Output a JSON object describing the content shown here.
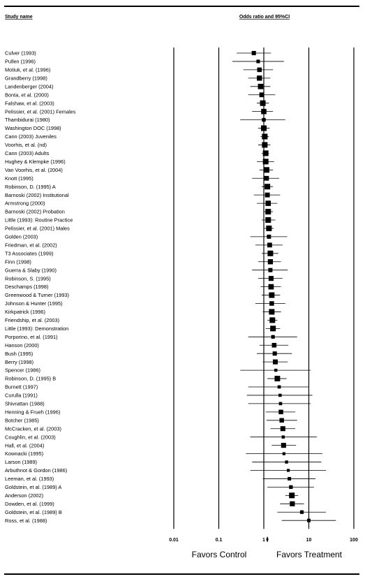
{
  "chart_data": {
    "type": "forest",
    "headers": {
      "left": "Study name",
      "right": "Odds ratio and 95%CI"
    },
    "x_scale": "log",
    "xlim": [
      0.01,
      100
    ],
    "x_ticks": [
      {
        "value": 0.01,
        "label": "0.01"
      },
      {
        "value": 0.1,
        "label": "0.1"
      },
      {
        "value": 1,
        "label": "1"
      },
      {
        "value": 10,
        "label": "10"
      },
      {
        "value": 100,
        "label": "100"
      }
    ],
    "favors_left": "Favors Control",
    "favors_right": "Favors Treatment",
    "summary": {
      "or": 1.2,
      "lo": 1.13,
      "hi": 1.27
    },
    "studies": [
      {
        "name": "Culver (1993)",
        "or": 0.6,
        "lo": 0.25,
        "hi": 1.45
      },
      {
        "name": "Pullen (1996)",
        "or": 0.75,
        "lo": 0.2,
        "hi": 2.8
      },
      {
        "name": "Motiuk, et al. (1996)",
        "or": 0.8,
        "lo": 0.35,
        "hi": 1.6
      },
      {
        "name": "Grandberry (1998)",
        "or": 0.8,
        "lo": 0.45,
        "hi": 1.4
      },
      {
        "name": "Landenberger (2004)",
        "or": 0.85,
        "lo": 0.5,
        "hi": 1.4
      },
      {
        "name": "Bonta, et al. (2000)",
        "or": 0.9,
        "lo": 0.45,
        "hi": 1.8
      },
      {
        "name": "Falshaw, et al. (2003)",
        "or": 0.95,
        "lo": 0.7,
        "hi": 1.3
      },
      {
        "name": "Pelissier, et al. (2001) Females",
        "or": 1.0,
        "lo": 0.55,
        "hi": 1.6
      },
      {
        "name": "Thambidurai (1980)",
        "or": 1.0,
        "lo": 0.3,
        "hi": 3.0
      },
      {
        "name": "Washington DOC (1998)",
        "or": 1.0,
        "lo": 0.75,
        "hi": 1.35
      },
      {
        "name": "Cann (2003) Juveniles",
        "or": 1.05,
        "lo": 0.85,
        "hi": 1.3
      },
      {
        "name": "Voorhis, et al. (nd)",
        "or": 1.05,
        "lo": 0.75,
        "hi": 1.4
      },
      {
        "name": "Cann (2003) Adults",
        "or": 1.1,
        "lo": 0.9,
        "hi": 1.3
      },
      {
        "name": "Hughey & Klempke (1996)",
        "or": 1.1,
        "lo": 0.7,
        "hi": 1.7
      },
      {
        "name": "Van Voorhis, et al. (2004)",
        "or": 1.15,
        "lo": 0.8,
        "hi": 1.6
      },
      {
        "name": "Knott (1995)",
        "or": 1.15,
        "lo": 0.55,
        "hi": 2.2
      },
      {
        "name": "Robinson, D. (1995) A",
        "or": 1.2,
        "lo": 0.9,
        "hi": 1.6
      },
      {
        "name": "Barnoski (2002) Institutional",
        "or": 1.2,
        "lo": 0.6,
        "hi": 2.3
      },
      {
        "name": "Armstrong (2000)",
        "or": 1.25,
        "lo": 0.7,
        "hi": 2.0
      },
      {
        "name": "Barnoski (2002) Probation",
        "or": 1.25,
        "lo": 1.0,
        "hi": 1.6
      },
      {
        "name": "Little (1993): Routine Practice",
        "or": 1.25,
        "lo": 0.9,
        "hi": 1.8
      },
      {
        "name": "Pelissier, et al. (2001) Males",
        "or": 1.3,
        "lo": 1.0,
        "hi": 1.65
      },
      {
        "name": "Golden (2003)",
        "or": 1.3,
        "lo": 0.5,
        "hi": 3.3
      },
      {
        "name": "Friedman, et al. (2002)",
        "or": 1.35,
        "lo": 0.65,
        "hi": 2.6
      },
      {
        "name": "T3 Associates (1999)",
        "or": 1.4,
        "lo": 0.9,
        "hi": 2.1
      },
      {
        "name": "Finn (1998)",
        "or": 1.4,
        "lo": 0.75,
        "hi": 2.4
      },
      {
        "name": "Guerra & Slaby (1990)",
        "or": 1.4,
        "lo": 0.55,
        "hi": 3.4
      },
      {
        "name": "Robinson, S. (1995)",
        "or": 1.45,
        "lo": 0.75,
        "hi": 2.6
      },
      {
        "name": "Deschamps (1998)",
        "or": 1.45,
        "lo": 0.85,
        "hi": 2.4
      },
      {
        "name": "Greenwood & Turner (1993)",
        "or": 1.5,
        "lo": 0.9,
        "hi": 2.3
      },
      {
        "name": "Johnson & Hunter (1995)",
        "or": 1.5,
        "lo": 0.65,
        "hi": 3.0
      },
      {
        "name": "Kirkpatrick (1996)",
        "or": 1.5,
        "lo": 0.95,
        "hi": 2.4
      },
      {
        "name": "Friendship, et al. (2003)",
        "or": 1.55,
        "lo": 1.2,
        "hi": 2.0
      },
      {
        "name": "Little (1993): Demonstration",
        "or": 1.6,
        "lo": 1.1,
        "hi": 2.3
      },
      {
        "name": "Porporino, et al. (1991)",
        "or": 1.6,
        "lo": 0.45,
        "hi": 5.5
      },
      {
        "name": "Hanson (2000)",
        "or": 1.7,
        "lo": 0.8,
        "hi": 3.5
      },
      {
        "name": "Bush (1995)",
        "or": 1.75,
        "lo": 0.7,
        "hi": 4.2
      },
      {
        "name": "Berry (1998)",
        "or": 1.8,
        "lo": 0.95,
        "hi": 3.4
      },
      {
        "name": "Spencer (1986)",
        "or": 1.85,
        "lo": 0.3,
        "hi": 11
      },
      {
        "name": "Robinson, D. (1995) B",
        "or": 2.0,
        "lo": 1.2,
        "hi": 3.2
      },
      {
        "name": "Burnett (1997)",
        "or": 2.2,
        "lo": 0.45,
        "hi": 10
      },
      {
        "name": "Curulla (1991)",
        "or": 2.3,
        "lo": 0.42,
        "hi": 12
      },
      {
        "name": "Shivrattan (1988)",
        "or": 2.35,
        "lo": 0.45,
        "hi": 11
      },
      {
        "name": "Henning & Frueh (1996)",
        "or": 2.4,
        "lo": 1.1,
        "hi": 5.0
      },
      {
        "name": "Botcher (1985)",
        "or": 2.5,
        "lo": 1.15,
        "hi": 5.5
      },
      {
        "name": "McCracken, et al. (2003)",
        "or": 2.65,
        "lo": 1.4,
        "hi": 5.0
      },
      {
        "name": "Coughlin, et al. (2003)",
        "or": 2.7,
        "lo": 0.5,
        "hi": 15
      },
      {
        "name": "Hall, et al. (2004)",
        "or": 2.75,
        "lo": 1.5,
        "hi": 5.2
      },
      {
        "name": "Kownacki (1995)",
        "or": 2.8,
        "lo": 0.4,
        "hi": 20
      },
      {
        "name": "Larson (1989)",
        "or": 3.2,
        "lo": 0.55,
        "hi": 19
      },
      {
        "name": "Arbuthnot & Gordon (1986)",
        "or": 3.5,
        "lo": 0.5,
        "hi": 24
      },
      {
        "name": "Leeman, et al. (1993)",
        "or": 3.7,
        "lo": 0.95,
        "hi": 14
      },
      {
        "name": "Goldstein, et al. (1989) A",
        "or": 4.0,
        "lo": 1.2,
        "hi": 13
      },
      {
        "name": "Anderson (2002)",
        "or": 4.2,
        "lo": 3.0,
        "hi": 5.8
      },
      {
        "name": "Dowden, et al. (1999)",
        "or": 4.3,
        "lo": 2.3,
        "hi": 7.8
      },
      {
        "name": "Goldstein, et al. (1989) B",
        "or": 7.0,
        "lo": 2.0,
        "hi": 24
      },
      {
        "name": "Ross, et al. (1988)",
        "or": 10.0,
        "lo": 2.5,
        "hi": 40
      }
    ]
  }
}
